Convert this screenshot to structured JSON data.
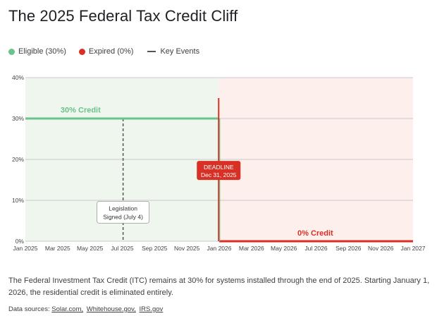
{
  "title": "The 2025 Federal Tax Credit Cliff",
  "legend": {
    "eligible": "Eligible (30%)",
    "expired": "Expired (0%)",
    "key_events": "Key Events"
  },
  "colors": {
    "eligible": "#6cc28a",
    "expired": "#d93025",
    "eligible_bg": "#eef6ee",
    "expired_bg": "#fcefec",
    "grid": "#bdbdbd"
  },
  "chart_data": {
    "type": "line",
    "x_ticks": [
      "Jan 2025",
      "Mar 2025",
      "May 2025",
      "Jul 2025",
      "Sep 2025",
      "Nov 2025",
      "Jan 2026",
      "Mar 2026",
      "May 2026",
      "Jul 2026",
      "Sep 2026",
      "Nov 2026",
      "Jan 2027"
    ],
    "y_ticks": [
      "0%",
      "10%",
      "20%",
      "30%",
      "40%"
    ],
    "ylim": [
      0,
      40
    ],
    "xlim": [
      "2025-01-01",
      "2027-01-01"
    ],
    "series": [
      {
        "name": "Eligible (30%)",
        "color": "#6cc28a",
        "points": [
          [
            "2025-01-01",
            30
          ],
          [
            "2025-12-31",
            30
          ]
        ]
      },
      {
        "name": "Expired (0%)",
        "color": "#d93025",
        "points": [
          [
            "2026-01-01",
            0
          ],
          [
            "2027-01-01",
            0
          ]
        ]
      }
    ],
    "cliff": {
      "date": "2025-12-31",
      "from": 35,
      "to": 0
    },
    "regions": [
      {
        "name": "eligible",
        "start": "2025-01-01",
        "end": "2025-12-31"
      },
      {
        "name": "expired",
        "start": "2025-12-31",
        "end": "2027-01-01"
      }
    ],
    "events": [
      {
        "date": "2025-07-04",
        "label_line1": "Legislation",
        "label_line2": "Signed (July 4)",
        "label_y": 7
      }
    ],
    "annotations": {
      "eligible_label": "30% Credit",
      "expired_label": "0% Credit",
      "deadline_line1": "DEADLINE",
      "deadline_line2": "Dec 31, 2025"
    }
  },
  "description": "The Federal Investment Tax Credit (ITC) remains at 30% for systems installed through the end of 2025. Starting January 1, 2026, the residential credit is eliminated entirely.",
  "sources": {
    "prefix": "Data sources:",
    "links": [
      "Solar.com,",
      "Whitehouse.gov,",
      "IRS.gov"
    ]
  }
}
